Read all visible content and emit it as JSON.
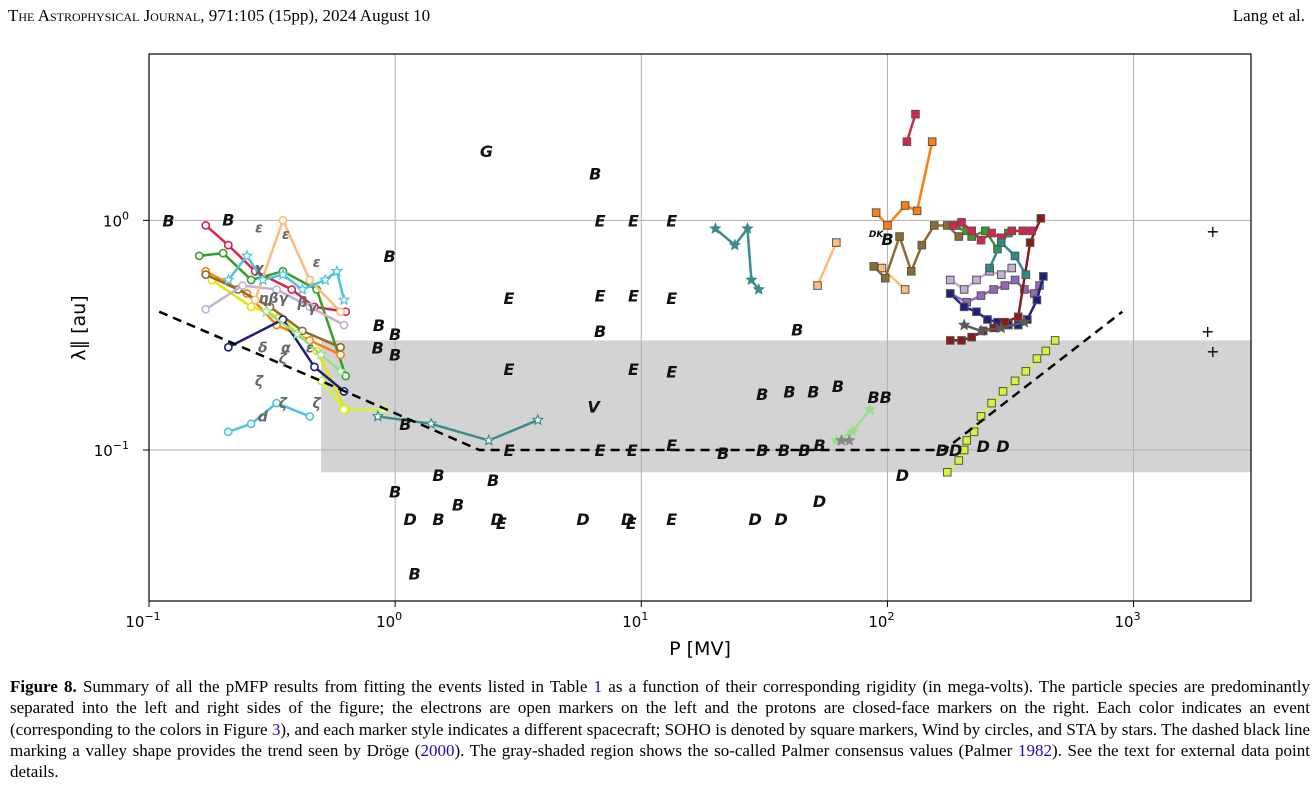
{
  "header": {
    "journal": "The Astrophysical Journal",
    "citation": ", 971:105 (15pp), 2024 August 10",
    "authors": "Lang et al."
  },
  "caption": {
    "figure_label": "Figure 8.",
    "text_1": " Summary of all the pMFP results from fitting the events listed in Table ",
    "table_ref": "1",
    "text_2": " as a function of their corresponding rigidity (in mega-volts). The particle species are predominantly separated into the left and right sides of the figure; the electrons are open markers on the left and the protons are closed-face markers on the right. Each color indicates an event (corresponding to the colors in Figure ",
    "figure_ref": "3",
    "text_3": "), and each marker style indicates a different spacecraft; SOHO is denoted by square markers, Wind by circles, and STA by stars. The dashed black line marking a valley shape provides the trend seen by Dröge (",
    "droge_year": "2000",
    "text_4": "). The gray-shaded region shows the so-called Palmer consensus values (Palmer ",
    "palmer_year": "1982",
    "text_5": "). See the text for external data point details."
  },
  "chart_data": {
    "type": "scatter",
    "x_scale": "log",
    "y_scale": "log",
    "xlim": [
      0.1,
      3000
    ],
    "ylim": [
      0.022,
      5.3
    ],
    "grid": true,
    "xlabel": "P [MV]",
    "ylabel": "λ∥ [au]",
    "x_ticks": [
      {
        "value": 0.1,
        "base": "10",
        "exp": "−1"
      },
      {
        "value": 1,
        "base": "10",
        "exp": "0"
      },
      {
        "value": 10,
        "base": "10",
        "exp": "1"
      },
      {
        "value": 100,
        "base": "10",
        "exp": "2"
      },
      {
        "value": 1000,
        "base": "10",
        "exp": "3"
      }
    ],
    "y_ticks": [
      {
        "value": 0.1,
        "base": "10",
        "exp": "−1"
      },
      {
        "value": 1,
        "base": "10",
        "exp": "0"
      }
    ],
    "palmer_band": {
      "x": [
        0.5,
        3000
      ],
      "y": [
        0.08,
        0.3
      ]
    },
    "droge_trend": {
      "x": [
        0.11,
        0.5,
        2.2,
        170,
        900
      ],
      "y": [
        0.4,
        0.2,
        0.1,
        0.1,
        0.4
      ]
    },
    "electron_series": [
      {
        "color": "#d6244c",
        "marker": "circle",
        "x": [
          0.17,
          0.21,
          0.27,
          0.38,
          0.47,
          0.63
        ],
        "y": [
          0.95,
          0.78,
          0.6,
          0.5,
          0.42,
          0.4
        ]
      },
      {
        "color": "#33a02c",
        "marker": "circle",
        "x": [
          0.16,
          0.2,
          0.26,
          0.35,
          0.48,
          0.63
        ],
        "y": [
          0.7,
          0.72,
          0.55,
          0.6,
          0.5,
          0.21
        ]
      },
      {
        "color": "#ff7f0e",
        "marker": "circle",
        "x": [
          0.17,
          0.25,
          0.33,
          0.45,
          0.6
        ],
        "y": [
          0.6,
          0.48,
          0.35,
          0.3,
          0.26
        ]
      },
      {
        "color": "#e6e600",
        "marker": "circle",
        "x": [
          0.18,
          0.26,
          0.34,
          0.48,
          0.63
        ],
        "y": [
          0.55,
          0.42,
          0.38,
          0.27,
          0.15
        ]
      },
      {
        "color": "#8c6d31",
        "marker": "circle",
        "x": [
          0.17,
          0.23,
          0.31,
          0.42,
          0.6
        ],
        "y": [
          0.58,
          0.5,
          0.42,
          0.33,
          0.28
        ]
      },
      {
        "color": "#c5b0d5",
        "marker": "circle",
        "x": [
          0.17,
          0.24,
          0.33,
          0.45,
          0.62
        ],
        "y": [
          0.41,
          0.52,
          0.5,
          0.42,
          0.35
        ]
      },
      {
        "color": "#ffbb78",
        "marker": "circle",
        "x": [
          0.27,
          0.35,
          0.45,
          0.6
        ],
        "y": [
          0.45,
          1.0,
          0.55,
          0.4
        ]
      },
      {
        "color": "#1f1f80",
        "marker": "circle",
        "x": [
          0.21,
          0.35,
          0.47,
          0.62
        ],
        "y": [
          0.28,
          0.37,
          0.23,
          0.18
        ]
      },
      {
        "color": "#4dc3dc",
        "marker": "circle",
        "x": [
          0.21,
          0.26,
          0.33,
          0.45
        ],
        "y": [
          0.12,
          0.13,
          0.16,
          0.14
        ]
      },
      {
        "color": "#4dc3dc",
        "marker": "star",
        "x": [
          0.21,
          0.25,
          0.29,
          0.35,
          0.42,
          0.52,
          0.58,
          0.62
        ],
        "y": [
          0.55,
          0.7,
          0.55,
          0.58,
          0.5,
          0.55,
          0.6,
          0.45
        ]
      },
      {
        "color": "#98df8a",
        "marker": "star",
        "x": [
          0.3,
          0.4,
          0.5,
          0.6
        ],
        "y": [
          0.4,
          0.32,
          0.26,
          0.22
        ]
      },
      {
        "color": "#d2f53c",
        "marker": "circle",
        "x": [
          0.5,
          0.62,
          0.9
        ],
        "y": [
          0.2,
          0.15,
          0.15
        ]
      },
      {
        "color": "#3d8c8c",
        "marker": "star",
        "x": [
          0.85,
          1.4,
          2.4,
          3.8
        ],
        "y": [
          0.14,
          0.13,
          0.11,
          0.135
        ]
      }
    ],
    "proton_series": [
      {
        "color": "#d6244c",
        "marker": "square",
        "x": [
          120,
          130
        ],
        "y": [
          2.2,
          2.9
        ]
      },
      {
        "color": "#ff7f0e",
        "marker": "square",
        "x": [
          90,
          100,
          118,
          132,
          152
        ],
        "y": [
          1.08,
          0.95,
          1.16,
          1.1,
          2.2
        ]
      },
      {
        "color": "#ffbb78",
        "marker": "square",
        "x": [
          52,
          62
        ],
        "y": [
          0.52,
          0.8
        ]
      },
      {
        "color": "#ffbb78",
        "marker": "square",
        "x": [
          95,
          118
        ],
        "y": [
          0.62,
          0.5
        ]
      },
      {
        "color": "#8c6d31",
        "marker": "square",
        "x": [
          88,
          98,
          112,
          125,
          138,
          155,
          175,
          195,
          210
        ],
        "y": [
          0.63,
          0.56,
          0.85,
          0.6,
          0.78,
          0.95,
          0.95,
          0.85,
          0.9
        ]
      },
      {
        "color": "#33a02c",
        "marker": "square",
        "x": [
          190,
          220,
          250,
          280,
          310
        ],
        "y": [
          0.95,
          0.85,
          0.9,
          0.75,
          0.88
        ]
      },
      {
        "color": "#c5b0d5",
        "marker": "square",
        "x": [
          180,
          205,
          230,
          260,
          290,
          320
        ],
        "y": [
          0.55,
          0.5,
          0.55,
          0.6,
          0.58,
          0.62
        ]
      },
      {
        "color": "#9467bd",
        "marker": "square",
        "x": [
          180,
          210,
          240,
          270,
          300,
          330,
          360,
          395,
          415
        ],
        "y": [
          0.48,
          0.44,
          0.47,
          0.5,
          0.52,
          0.55,
          0.5,
          0.48,
          0.52
        ]
      },
      {
        "color": "#1f1f80",
        "marker": "square",
        "x": [
          180,
          205,
          230,
          255,
          280,
          310,
          340,
          370,
          405,
          430
        ],
        "y": [
          0.48,
          0.42,
          0.4,
          0.37,
          0.36,
          0.35,
          0.35,
          0.37,
          0.45,
          0.57
        ]
      },
      {
        "color": "#8b1a1a",
        "marker": "square",
        "x": [
          180,
          200,
          220,
          245,
          270,
          300,
          340,
          380,
          420
        ],
        "y": [
          0.3,
          0.3,
          0.31,
          0.33,
          0.34,
          0.36,
          0.38,
          0.8,
          1.02
        ]
      },
      {
        "color": "#d6244c",
        "marker": "square",
        "x": [
          185,
          200,
          220,
          240,
          265,
          290,
          320,
          355,
          385
        ],
        "y": [
          0.95,
          0.98,
          0.9,
          0.82,
          0.88,
          0.84,
          0.9,
          0.9,
          0.9
        ]
      },
      {
        "color": "#2e8b8b",
        "marker": "square",
        "x": [
          260,
          290,
          330,
          365
        ],
        "y": [
          0.62,
          0.8,
          0.7,
          0.58
        ]
      },
      {
        "color": "#d2f53c",
        "marker": "square",
        "x": [
          175,
          195,
          205,
          210,
          225,
          240,
          265,
          295,
          330,
          365,
          405,
          440,
          480
        ],
        "y": [
          0.08,
          0.09,
          0.1,
          0.11,
          0.12,
          0.14,
          0.16,
          0.18,
          0.2,
          0.22,
          0.25,
          0.27,
          0.3
        ]
      },
      {
        "color": "#3d8c8c",
        "marker": "star",
        "x": [
          20,
          24,
          27,
          28,
          30
        ],
        "y": [
          0.92,
          0.78,
          0.92,
          0.55,
          0.5
        ]
      },
      {
        "color": "#5a5a5a",
        "marker": "star",
        "x": [
          205,
          240,
          290,
          360
        ],
        "y": [
          0.35,
          0.33,
          0.34,
          0.36
        ]
      },
      {
        "color": "#98df8a",
        "marker": "star",
        "x": [
          62,
          72,
          85
        ],
        "y": [
          0.11,
          0.12,
          0.15
        ]
      },
      {
        "color": "#888888",
        "marker": "star",
        "x": [
          65,
          70
        ],
        "y": [
          0.11,
          0.11
        ]
      }
    ],
    "external_labels": [
      {
        "t": "B",
        "x": 0.12,
        "y": 1.0
      },
      {
        "t": "B",
        "x": 0.21,
        "y": 1.01
      },
      {
        "t": "B",
        "x": 0.95,
        "y": 0.7
      },
      {
        "t": "B",
        "x": 0.86,
        "y": 0.35
      },
      {
        "t": "B",
        "x": 0.85,
        "y": 0.28
      },
      {
        "t": "B",
        "x": 1.0,
        "y": 0.32
      },
      {
        "t": "B",
        "x": 1.0,
        "y": 0.26
      },
      {
        "t": "G",
        "x": 2.35,
        "y": 2.0
      },
      {
        "t": "B",
        "x": 6.5,
        "y": 1.6
      },
      {
        "t": "E",
        "x": 6.8,
        "y": 1.0
      },
      {
        "t": "E",
        "x": 9.3,
        "y": 1.0
      },
      {
        "t": "E",
        "x": 13.3,
        "y": 1.0
      },
      {
        "t": "E",
        "x": 2.9,
        "y": 0.46
      },
      {
        "t": "E",
        "x": 6.8,
        "y": 0.47
      },
      {
        "t": "E",
        "x": 9.3,
        "y": 0.47
      },
      {
        "t": "E",
        "x": 13.3,
        "y": 0.46
      },
      {
        "t": "B",
        "x": 6.8,
        "y": 0.33
      },
      {
        "t": "B",
        "x": 43,
        "y": 0.335
      },
      {
        "t": "E",
        "x": 2.9,
        "y": 0.225
      },
      {
        "t": "E",
        "x": 9.3,
        "y": 0.225
      },
      {
        "t": "E",
        "x": 13.3,
        "y": 0.22
      },
      {
        "t": "V",
        "x": 6.4,
        "y": 0.155
      },
      {
        "t": "E",
        "x": 2.9,
        "y": 0.1
      },
      {
        "t": "E",
        "x": 6.8,
        "y": 0.1
      },
      {
        "t": "E",
        "x": 9.2,
        "y": 0.1
      },
      {
        "t": "E",
        "x": 13.3,
        "y": 0.105
      },
      {
        "t": "B",
        "x": 1.1,
        "y": 0.13
      },
      {
        "t": "B",
        "x": 1.5,
        "y": 0.078
      },
      {
        "t": "B",
        "x": 2.5,
        "y": 0.074
      },
      {
        "t": "B",
        "x": 1.0,
        "y": 0.066
      },
      {
        "t": "B",
        "x": 1.8,
        "y": 0.058
      },
      {
        "t": "D",
        "x": 1.15,
        "y": 0.05
      },
      {
        "t": "B",
        "x": 1.5,
        "y": 0.05
      },
      {
        "t": "D",
        "x": 2.6,
        "y": 0.05
      },
      {
        "t": "E",
        "x": 2.7,
        "y": 0.048
      },
      {
        "t": "D",
        "x": 5.8,
        "y": 0.05
      },
      {
        "t": "D",
        "x": 8.8,
        "y": 0.05
      },
      {
        "t": "E",
        "x": 9.1,
        "y": 0.048
      },
      {
        "t": "E",
        "x": 13.3,
        "y": 0.05
      },
      {
        "t": "B",
        "x": 1.2,
        "y": 0.029
      },
      {
        "t": "B",
        "x": 21.5,
        "y": 0.097
      },
      {
        "t": "B",
        "x": 31,
        "y": 0.1
      },
      {
        "t": "B",
        "x": 38,
        "y": 0.1
      },
      {
        "t": "B",
        "x": 46,
        "y": 0.1
      },
      {
        "t": "B",
        "x": 53,
        "y": 0.105
      },
      {
        "t": "B",
        "x": 31,
        "y": 0.175
      },
      {
        "t": "B",
        "x": 40,
        "y": 0.18
      },
      {
        "t": "B",
        "x": 50,
        "y": 0.18
      },
      {
        "t": "B",
        "x": 63,
        "y": 0.19
      },
      {
        "t": "BB",
        "x": 93,
        "y": 0.17
      },
      {
        "t": "D",
        "x": 29,
        "y": 0.05
      },
      {
        "t": "D",
        "x": 37,
        "y": 0.05
      },
      {
        "t": "D",
        "x": 53,
        "y": 0.06
      },
      {
        "t": "D",
        "x": 115,
        "y": 0.078
      },
      {
        "t": "DD",
        "x": 178,
        "y": 0.1
      },
      {
        "t": "D",
        "x": 245,
        "y": 0.104
      },
      {
        "t": "D",
        "x": 295,
        "y": 0.104
      },
      {
        "t": "B",
        "x": 100,
        "y": 0.83
      },
      {
        "t": "DK",
        "x": 90,
        "y": 0.9
      },
      {
        "t": "+",
        "x": 2100,
        "y": 0.9
      },
      {
        "t": "+",
        "x": 2000,
        "y": 0.33
      },
      {
        "t": "+",
        "x": 2100,
        "y": 0.27
      }
    ],
    "symbol_labels": [
      {
        "t": "ε",
        "x": 0.28,
        "y": 0.93
      },
      {
        "t": "ε",
        "x": 0.36,
        "y": 0.87
      },
      {
        "t": "ε",
        "x": 0.48,
        "y": 0.66
      },
      {
        "t": "χ",
        "x": 0.28,
        "y": 0.62
      },
      {
        "t": "ηβγ",
        "x": 0.32,
        "y": 0.46
      },
      {
        "t": "β",
        "x": 0.42,
        "y": 0.44
      },
      {
        "t": "γ",
        "x": 0.46,
        "y": 0.42
      },
      {
        "t": "δ",
        "x": 0.29,
        "y": 0.28
      },
      {
        "t": "α",
        "x": 0.36,
        "y": 0.28
      },
      {
        "t": "ε",
        "x": 0.45,
        "y": 0.28
      },
      {
        "t": "ζ",
        "x": 0.35,
        "y": 0.25
      },
      {
        "t": "ζ",
        "x": 0.28,
        "y": 0.2
      },
      {
        "t": "ζ",
        "x": 0.35,
        "y": 0.16
      },
      {
        "t": "ζ",
        "x": 0.48,
        "y": 0.16
      },
      {
        "t": "d",
        "x": 0.29,
        "y": 0.14
      }
    ]
  }
}
